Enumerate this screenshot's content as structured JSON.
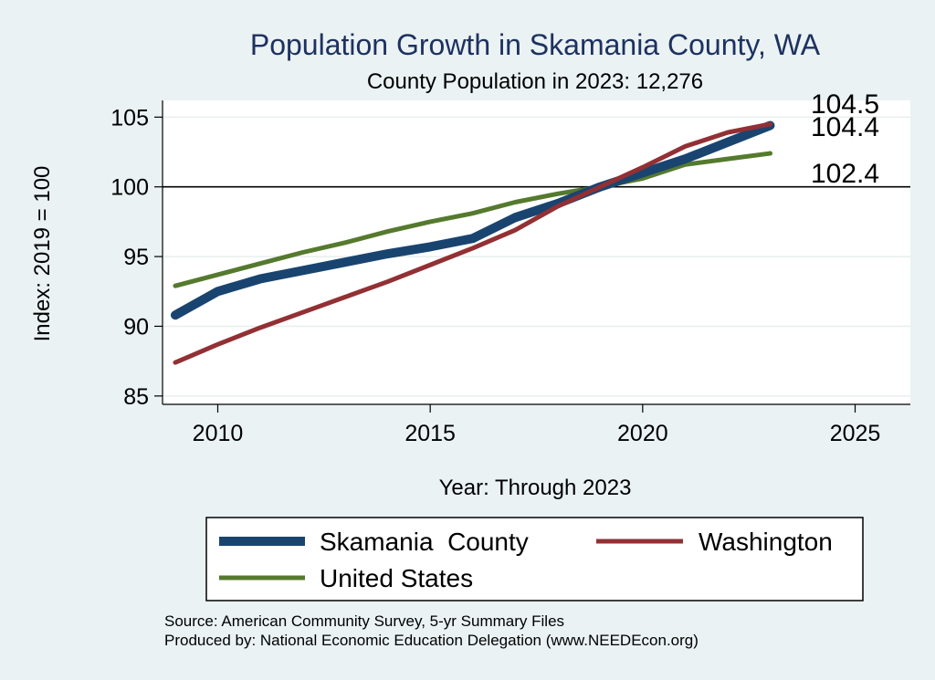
{
  "chart_data": {
    "type": "line",
    "title": "Population Growth in Skamania County, WA",
    "subtitle": "County Population in 2023: 12,276",
    "xlabel": "Year: Through 2023",
    "ylabel": "Index: 2019 = 100",
    "xlim": [
      2008.7,
      2026.3
    ],
    "ylim": [
      84.4,
      106.2
    ],
    "xticks": [
      2010,
      2015,
      2020,
      2025
    ],
    "yticks": [
      85,
      90,
      95,
      100,
      105
    ],
    "reference_line": 100,
    "grid": true,
    "x": [
      2009,
      2010,
      2011,
      2012,
      2013,
      2014,
      2015,
      2016,
      2017,
      2018,
      2019,
      2020,
      2021,
      2022,
      2023
    ],
    "series": [
      {
        "name": "Skamania  County",
        "color": "#1a4470",
        "values": [
          90.8,
          92.5,
          93.4,
          94.0,
          94.6,
          95.2,
          95.7,
          96.3,
          97.8,
          98.8,
          100.0,
          101.0,
          102.0,
          103.2,
          104.4
        ],
        "end_label": "104.4"
      },
      {
        "name": "Washington",
        "color": "#923034",
        "values": [
          87.4,
          88.7,
          89.9,
          91.0,
          92.1,
          93.2,
          94.4,
          95.6,
          96.9,
          98.6,
          100.0,
          101.4,
          102.9,
          103.9,
          104.5
        ],
        "end_label": "104.5"
      },
      {
        "name": "United States",
        "color": "#557a2e",
        "values": [
          92.9,
          93.7,
          94.5,
          95.3,
          96.0,
          96.8,
          97.5,
          98.1,
          98.9,
          99.5,
          100.0,
          100.6,
          101.6,
          102.0,
          102.4
        ],
        "end_label": "102.4"
      }
    ],
    "legend_position": "bottom",
    "source": "Source: American Community Survey, 5-yr Summary Files",
    "producer": "Produced by: National Economic Education Delegation (www.NEEDEcon.org)"
  }
}
